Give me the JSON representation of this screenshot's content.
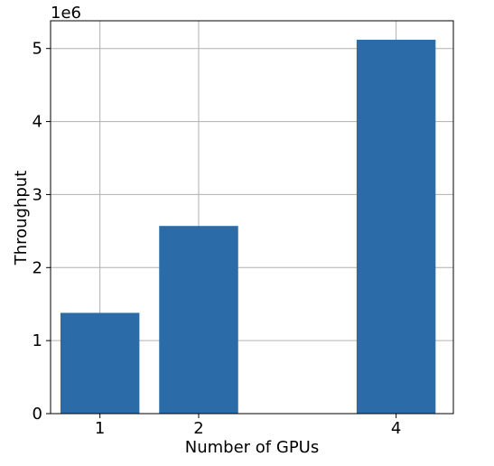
{
  "chart_data": {
    "type": "bar",
    "x": [
      1,
      2,
      4
    ],
    "values": [
      1380000,
      2570000,
      5120000
    ],
    "xlabel": "Number of GPUs",
    "ylabel": "Throughput",
    "y_offset_label": "1e6",
    "xlim": [
      0.5,
      4.58
    ],
    "ylim": [
      0,
      5.38
    ],
    "y_scale": 1000000,
    "xticks": [
      1,
      2,
      4
    ],
    "yticks": [
      0,
      1,
      2,
      3,
      4,
      5
    ],
    "grid": true,
    "bar_color": "#2b6ca8",
    "grid_color": "#b0b0b0"
  }
}
